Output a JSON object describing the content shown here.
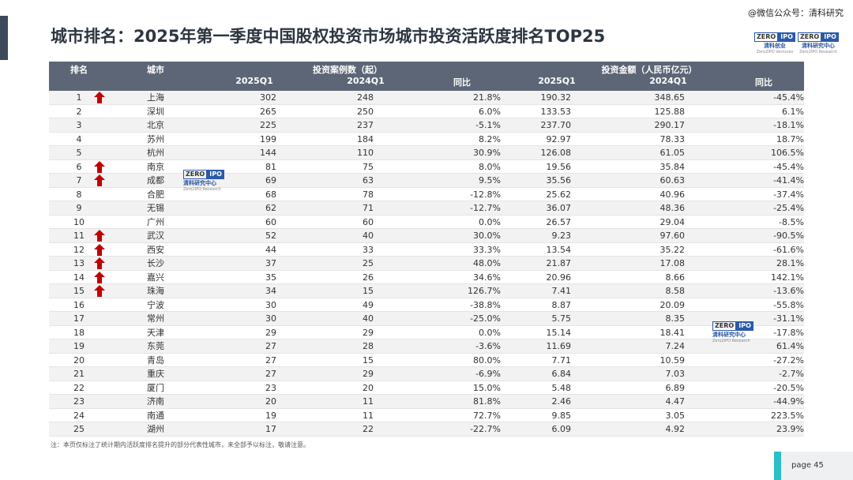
{
  "header": {
    "title": "城市排名：2025年第一季度中国股权投资市场城市投资活跃度排名TOP25",
    "watermark": "@微信公众号：清科研究"
  },
  "logos": {
    "zero": "ZERO",
    "ipo": "IPO",
    "ventures_cn": "清科创业",
    "ventures_en": "Zero2IPO Ventures",
    "research_cn": "清科研究中心",
    "research_en": "Zero2IPO Research"
  },
  "table": {
    "group_headers": [
      "投资案例数（起）",
      "投资金额（人民币亿元）"
    ],
    "columns": [
      "排名",
      "城市",
      "2025Q1",
      "2024Q1",
      "同比",
      "2025Q1",
      "2024Q1",
      "同比"
    ],
    "rows": [
      {
        "up": true,
        "cells": [
          "1",
          "上海",
          "302",
          "248",
          "21.8%",
          "190.32",
          "348.65",
          "-45.4%"
        ]
      },
      {
        "up": false,
        "cells": [
          "2",
          "深圳",
          "265",
          "250",
          "6.0%",
          "133.53",
          "125.88",
          "6.1%"
        ]
      },
      {
        "up": false,
        "cells": [
          "3",
          "北京",
          "225",
          "237",
          "-5.1%",
          "237.70",
          "290.17",
          "-18.1%"
        ]
      },
      {
        "up": false,
        "cells": [
          "4",
          "苏州",
          "199",
          "184",
          "8.2%",
          "92.97",
          "78.33",
          "18.7%"
        ]
      },
      {
        "up": false,
        "cells": [
          "5",
          "杭州",
          "144",
          "110",
          "30.9%",
          "126.08",
          "61.05",
          "106.5%"
        ]
      },
      {
        "up": true,
        "cells": [
          "6",
          "南京",
          "81",
          "75",
          "8.0%",
          "19.56",
          "35.84",
          "-45.4%"
        ]
      },
      {
        "up": true,
        "cells": [
          "7",
          "成都",
          "69",
          "63",
          "9.5%",
          "35.56",
          "60.63",
          "-41.4%"
        ]
      },
      {
        "up": false,
        "cells": [
          "8",
          "合肥",
          "68",
          "78",
          "-12.8%",
          "25.62",
          "40.96",
          "-37.4%"
        ]
      },
      {
        "up": false,
        "cells": [
          "9",
          "无锡",
          "62",
          "71",
          "-12.7%",
          "36.07",
          "48.36",
          "-25.4%"
        ]
      },
      {
        "up": false,
        "cells": [
          "10",
          "广州",
          "60",
          "60",
          "0.0%",
          "26.57",
          "29.04",
          "-8.5%"
        ]
      },
      {
        "up": true,
        "cells": [
          "11",
          "武汉",
          "52",
          "40",
          "30.0%",
          "9.23",
          "97.60",
          "-90.5%"
        ]
      },
      {
        "up": true,
        "cells": [
          "12",
          "西安",
          "44",
          "33",
          "33.3%",
          "13.54",
          "35.22",
          "-61.6%"
        ]
      },
      {
        "up": true,
        "cells": [
          "13",
          "长沙",
          "37",
          "25",
          "48.0%",
          "21.87",
          "17.08",
          "28.1%"
        ]
      },
      {
        "up": true,
        "cells": [
          "14",
          "嘉兴",
          "35",
          "26",
          "34.6%",
          "20.96",
          "8.66",
          "142.1%"
        ]
      },
      {
        "up": true,
        "cells": [
          "15",
          "珠海",
          "34",
          "15",
          "126.7%",
          "7.41",
          "8.58",
          "-13.6%"
        ]
      },
      {
        "up": false,
        "cells": [
          "16",
          "宁波",
          "30",
          "49",
          "-38.8%",
          "8.87",
          "20.09",
          "-55.8%"
        ]
      },
      {
        "up": false,
        "cells": [
          "17",
          "常州",
          "30",
          "40",
          "-25.0%",
          "5.75",
          "8.35",
          "-31.1%"
        ]
      },
      {
        "up": false,
        "cells": [
          "18",
          "天津",
          "29",
          "29",
          "0.0%",
          "15.14",
          "18.41",
          "-17.8%"
        ]
      },
      {
        "up": false,
        "cells": [
          "19",
          "东莞",
          "27",
          "28",
          "-3.6%",
          "11.69",
          "7.24",
          "61.4%"
        ]
      },
      {
        "up": false,
        "cells": [
          "20",
          "青岛",
          "27",
          "15",
          "80.0%",
          "7.71",
          "10.59",
          "-27.2%"
        ]
      },
      {
        "up": false,
        "cells": [
          "21",
          "重庆",
          "27",
          "29",
          "-6.9%",
          "6.84",
          "7.03",
          "-2.7%"
        ]
      },
      {
        "up": false,
        "cells": [
          "22",
          "厦门",
          "23",
          "20",
          "15.0%",
          "5.48",
          "6.89",
          "-20.5%"
        ]
      },
      {
        "up": false,
        "cells": [
          "23",
          "济南",
          "20",
          "11",
          "81.8%",
          "2.46",
          "4.47",
          "-44.9%"
        ]
      },
      {
        "up": false,
        "cells": [
          "24",
          "南通",
          "19",
          "11",
          "72.7%",
          "9.85",
          "3.05",
          "223.5%"
        ]
      },
      {
        "up": false,
        "cells": [
          "25",
          "湖州",
          "17",
          "22",
          "-22.7%",
          "6.09",
          "4.92",
          "23.9%"
        ]
      }
    ]
  },
  "footer": {
    "note": "注：本页仅标注了统计期内活跃度排名提升的部分代表性城市，未全部予以标注，敬请注意。",
    "page": "page 45"
  }
}
